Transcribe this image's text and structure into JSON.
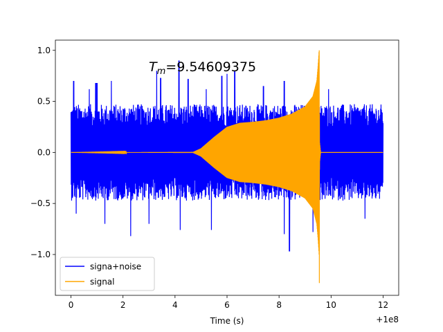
{
  "chart_data": {
    "type": "line",
    "annotation": {
      "prefix": "T",
      "subscript": "m",
      "value": "=9.54609375"
    },
    "xlabel": "Time (s)",
    "xoffset_label": "+1e8",
    "xlim": [
      -0.6,
      12.6
    ],
    "ylim": [
      -1.4,
      1.1
    ],
    "xticks": [
      0,
      2,
      4,
      6,
      8,
      10,
      12
    ],
    "xtick_labels": [
      "0",
      "2",
      "4",
      "6",
      "8",
      "10",
      "12"
    ],
    "yticks": [
      -1.0,
      -0.5,
      0.0,
      0.5,
      1.0
    ],
    "ytick_labels": [
      "−1.0",
      "−0.5",
      "0.0",
      "0.5",
      "1.0"
    ],
    "legend_position": "lower-left",
    "series": [
      {
        "name": "signa+noise",
        "color": "#0000ff",
        "envelope": {
          "x_range": [
            0,
            12
          ],
          "upper_typical": 0.45,
          "upper_peaks": [
            [
              0.1,
              0.7
            ],
            [
              0.7,
              0.62
            ],
            [
              0.95,
              0.68
            ],
            [
              1.0,
              0.68
            ],
            [
              1.55,
              0.7
            ],
            [
              3.3,
              0.8
            ],
            [
              3.45,
              0.73
            ],
            [
              4.15,
              0.9
            ],
            [
              4.5,
              0.72
            ],
            [
              5.2,
              0.62
            ],
            [
              5.8,
              0.75
            ],
            [
              6.0,
              0.77
            ],
            [
              6.3,
              0.8
            ],
            [
              7.4,
              0.65
            ],
            [
              8.2,
              0.7
            ],
            [
              9.9,
              0.62
            ]
          ],
          "lower_typical": -0.45,
          "lower_peaks": [
            [
              0.2,
              -0.6
            ],
            [
              1.3,
              -0.7
            ],
            [
              2.3,
              -0.82
            ],
            [
              3.0,
              -0.7
            ],
            [
              4.2,
              -0.76
            ],
            [
              5.4,
              -0.76
            ],
            [
              8.2,
              -0.8
            ],
            [
              8.4,
              -0.97
            ],
            [
              9.3,
              -0.78
            ],
            [
              11.3,
              -0.65
            ]
          ]
        }
      },
      {
        "name": "signal",
        "color": "#ffa500",
        "merger_time": 9.54609375,
        "envelope_profile": [
          [
            0,
            0
          ],
          [
            4.7,
            0.005
          ],
          [
            5.0,
            0.04
          ],
          [
            5.5,
            0.15
          ],
          [
            6.0,
            0.25
          ],
          [
            6.5,
            0.29
          ],
          [
            7.0,
            0.3
          ],
          [
            7.5,
            0.315
          ],
          [
            8.0,
            0.34
          ],
          [
            8.5,
            0.38
          ],
          [
            9.0,
            0.45
          ],
          [
            9.3,
            0.55
          ],
          [
            9.45,
            0.7
          ],
          [
            9.5,
            0.85
          ],
          [
            9.54,
            1.0
          ],
          [
            9.56,
            0.1
          ],
          [
            9.6,
            0.0
          ],
          [
            12,
            0
          ]
        ],
        "peak_max": 1.0,
        "peak_min": -1.28
      }
    ]
  }
}
